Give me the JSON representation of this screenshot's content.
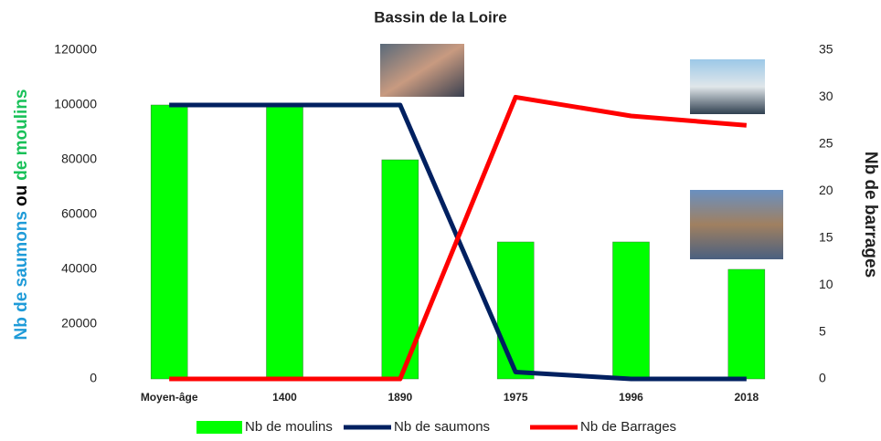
{
  "chart_data": {
    "type": "bar",
    "title": "Bassin de la Loire",
    "categories": [
      "Moyen-âge",
      "1400",
      "1890",
      "1975",
      "1996",
      "2018"
    ],
    "series": [
      {
        "name": "Nb de moulins",
        "color": "#00ff00",
        "type": "bar",
        "values": [
          100000,
          100000,
          80000,
          50000,
          50000,
          40000
        ]
      },
      {
        "name": "Nb de saumons",
        "color": "#002060",
        "type": "line",
        "values": [
          100000,
          100000,
          100000,
          2500,
          0,
          0
        ]
      },
      {
        "name": "Nb de Barrages",
        "color": "#ff0000",
        "type": "line",
        "axis": "y2",
        "values": [
          0,
          0,
          0,
          30,
          28,
          27
        ]
      }
    ],
    "ylabel": [
      {
        "text": "Nb de saumons",
        "color": "#1f9bd8"
      },
      {
        "text": "ou",
        "color": "#000000"
      },
      {
        "text": "de moulins",
        "color": "#19c159"
      }
    ],
    "y2label": "Nb de barrages",
    "y2label_color": "#ff0000",
    "ylim": [
      0,
      120000
    ],
    "yticks": [
      0,
      20000,
      40000,
      60000,
      80000,
      100000,
      120000
    ],
    "y2lim": [
      0,
      35
    ],
    "y2ticks": [
      0,
      5,
      10,
      15,
      20,
      25,
      30,
      35
    ],
    "legend": "bottom"
  }
}
